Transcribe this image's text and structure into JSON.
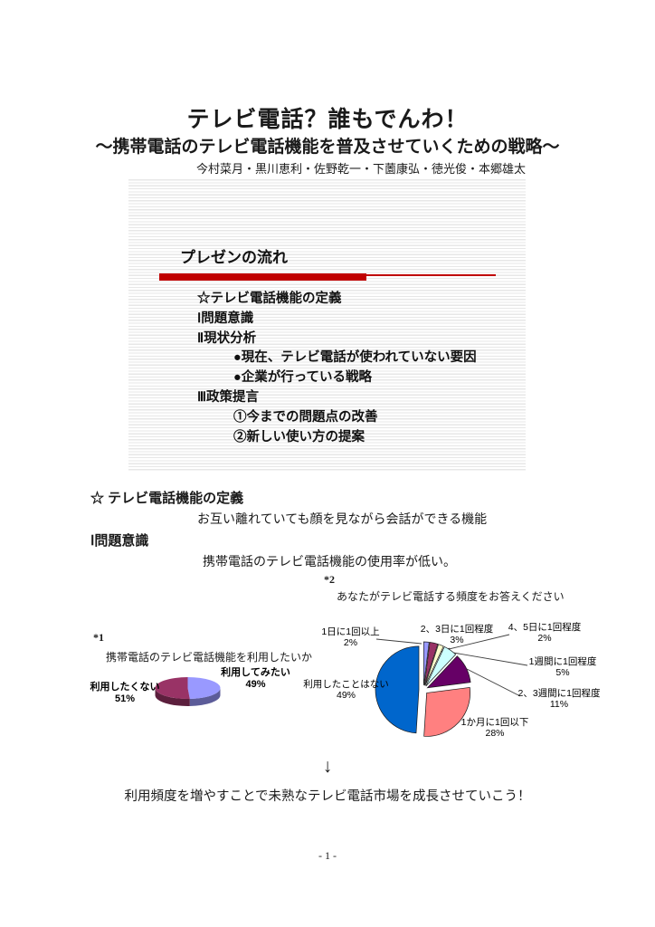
{
  "page": {
    "title": "テレビ電話？誰もでんわ！",
    "subtitle": "～携帯電話のテレビ電話機能を普及させていくための戦略～",
    "authors": "今村菜月・黒川恵利・佐野乾一・下薗康弘・徳光俊・本郷雄太",
    "page_number": "- 1 -"
  },
  "slide": {
    "title": "プレゼンの流れ",
    "accent_color": "#c00000",
    "items": [
      {
        "text": "☆テレビ電話機能の定義",
        "indent": 0
      },
      {
        "text": "Ⅰ問題意識",
        "indent": 0
      },
      {
        "text": "Ⅱ現状分析",
        "indent": 0
      },
      {
        "text": "●現在、テレビ電話が使われていない要因",
        "indent": 1
      },
      {
        "text": "●企業が行っている戦略",
        "indent": 1
      },
      {
        "text": "Ⅲ政策提言",
        "indent": 0
      },
      {
        "text": "①今までの問題点の改善",
        "indent": 1
      },
      {
        "text": "②新しい使い方の提案",
        "indent": 1
      }
    ]
  },
  "sections": {
    "definition_heading": "☆ テレビ電話機能の定義",
    "definition_body": "お互い離れていても顔を見ながら会話ができる機能",
    "problem_heading": "Ⅰ問題意識",
    "problem_body": "携帯電話のテレビ電話機能の使用率が低い。",
    "note1": "*1",
    "note2": "*2",
    "arrow": "↓",
    "conclusion": "利用頻度を増やすことで未熟なテレビ電話市場を成長させていこう！"
  },
  "chart_data": [
    {
      "id": "want-to-use-pie",
      "type": "pie",
      "style": "3d",
      "title": "携帯電話のテレビ電話機能を利用したいか",
      "labels": [
        "利用してみたい",
        "利用したくない"
      ],
      "values": [
        49,
        51
      ],
      "colors": [
        "#9999ff",
        "#993366"
      ],
      "legend_position": "side-labels"
    },
    {
      "id": "usage-frequency-pie",
      "type": "pie",
      "style": "exploded",
      "title": "あなたがテレビ電話する頻度をお答えください",
      "labels": [
        "1日に1回以上",
        "2、3日に1回程度",
        "4、5日に1回程度",
        "1週間に1回程度",
        "2、3週間に1回程度",
        "1か月に1回以下",
        "利用したことはない"
      ],
      "values": [
        2,
        3,
        2,
        5,
        11,
        28,
        49
      ],
      "colors": [
        "#9999ff",
        "#993366",
        "#ffffcc",
        "#ccffff",
        "#660066",
        "#ff8080",
        "#0066cc"
      ],
      "legend_position": "callout-labels"
    }
  ]
}
